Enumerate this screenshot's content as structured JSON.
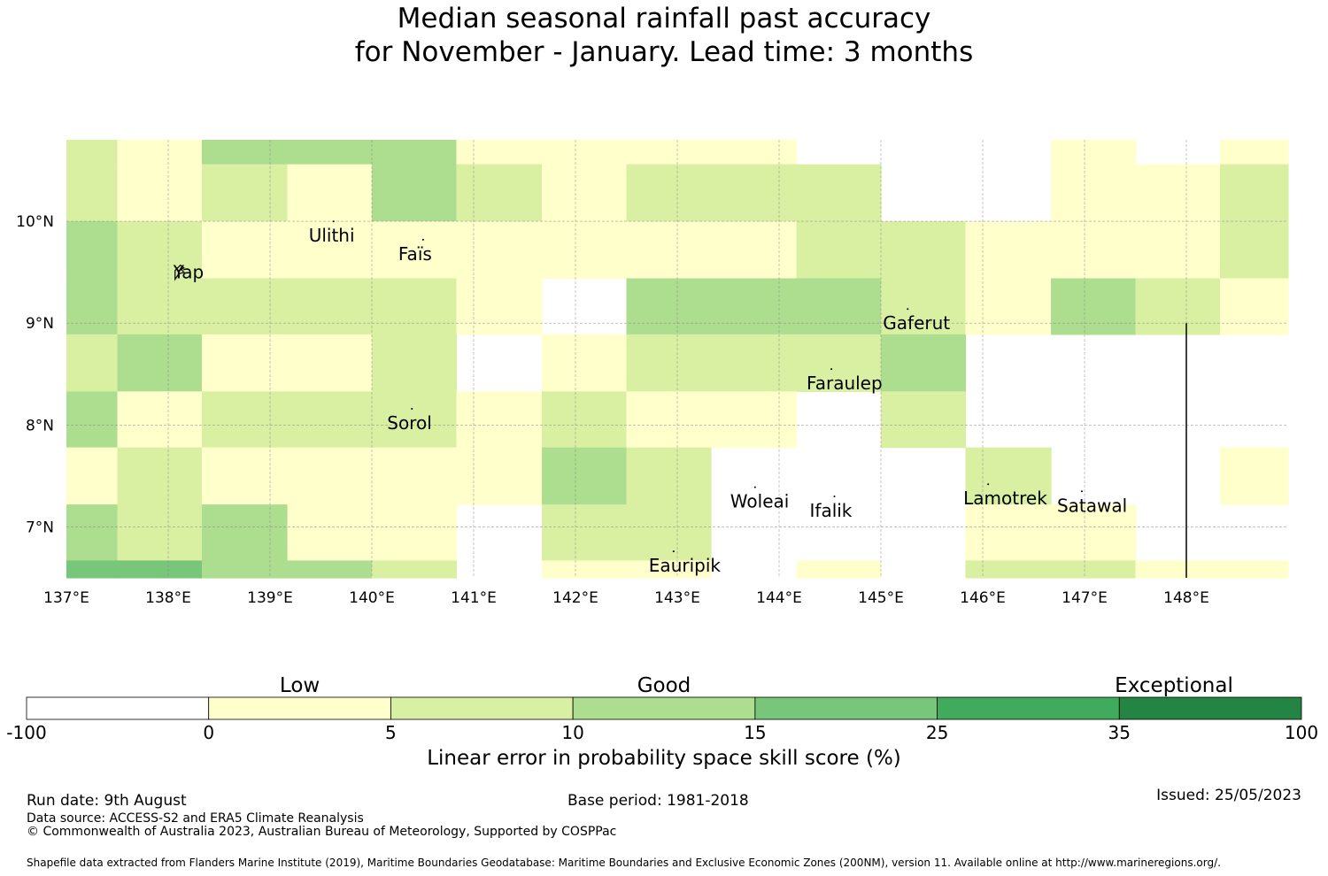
{
  "title": {
    "line1": "Median seasonal rainfall past accuracy",
    "line2": "for November - January. Lead time: 3 months"
  },
  "map": {
    "lon_range": [
      137.0,
      149.0
    ],
    "lat_range": [
      6.5,
      10.8
    ],
    "x_ticks": [
      {
        "lon": 137,
        "label": "137°E"
      },
      {
        "lon": 138,
        "label": "138°E"
      },
      {
        "lon": 139,
        "label": "139°E"
      },
      {
        "lon": 140,
        "label": "140°E"
      },
      {
        "lon": 141,
        "label": "141°E"
      },
      {
        "lon": 142,
        "label": "142°E"
      },
      {
        "lon": 143,
        "label": "143°E"
      },
      {
        "lon": 144,
        "label": "144°E"
      },
      {
        "lon": 145,
        "label": "145°E"
      },
      {
        "lon": 146,
        "label": "146°E"
      },
      {
        "lon": 147,
        "label": "147°E"
      },
      {
        "lon": 148,
        "label": "148°E"
      }
    ],
    "y_ticks": [
      {
        "lat": 10,
        "label": "10°N"
      },
      {
        "lat": 9,
        "label": "9°N"
      },
      {
        "lat": 8,
        "label": "8°N"
      },
      {
        "lat": 7,
        "label": "7°N"
      }
    ],
    "grid_lon": [
      138,
      139,
      140,
      141,
      142,
      143,
      144,
      145,
      146,
      147,
      148
    ],
    "grid_lat": [
      10,
      9,
      8,
      7
    ],
    "cell_columns": [
      [
        137.0,
        137.5
      ],
      [
        137.5,
        138.33
      ],
      [
        138.33,
        139.17
      ],
      [
        139.17,
        140.0
      ],
      [
        140.0,
        140.83
      ],
      [
        140.83,
        141.67
      ],
      [
        141.67,
        142.5
      ],
      [
        142.5,
        143.33
      ],
      [
        143.33,
        144.17
      ],
      [
        144.17,
        145.0
      ],
      [
        145.0,
        145.83
      ],
      [
        145.83,
        146.67
      ],
      [
        146.67,
        147.5
      ],
      [
        147.5,
        148.33
      ],
      [
        148.33,
        149.0
      ]
    ],
    "cell_rows": [
      [
        10.56,
        10.8
      ],
      [
        10.0,
        10.56
      ],
      [
        9.44,
        10.0
      ],
      [
        8.89,
        9.44
      ],
      [
        8.33,
        8.89
      ],
      [
        7.78,
        8.33
      ],
      [
        7.22,
        7.78
      ],
      [
        6.67,
        7.22
      ],
      [
        6.5,
        6.67
      ]
    ],
    "skill_grid": [
      [
        2,
        1,
        3,
        3,
        3,
        1,
        1,
        1,
        1,
        0,
        0,
        0,
        1,
        0,
        1
      ],
      [
        2,
        1,
        2,
        1,
        3,
        2,
        1,
        2,
        2,
        2,
        0,
        0,
        1,
        1,
        2
      ],
      [
        3,
        2,
        1,
        1,
        1,
        1,
        1,
        1,
        1,
        2,
        2,
        1,
        1,
        1,
        2
      ],
      [
        3,
        2,
        2,
        2,
        2,
        1,
        0,
        3,
        3,
        3,
        2,
        1,
        3,
        2,
        1
      ],
      [
        2,
        3,
        1,
        1,
        2,
        0,
        1,
        2,
        2,
        2,
        3,
        0,
        0,
        0,
        0
      ],
      [
        3,
        1,
        2,
        2,
        2,
        1,
        2,
        1,
        1,
        0,
        2,
        0,
        0,
        0,
        0
      ],
      [
        1,
        2,
        1,
        1,
        1,
        1,
        3,
        2,
        0,
        0,
        0,
        2,
        0,
        0,
        1
      ],
      [
        3,
        2,
        3,
        1,
        1,
        0,
        2,
        2,
        0,
        0,
        0,
        1,
        1,
        0,
        0
      ],
      [
        4,
        4,
        3,
        3,
        2,
        0,
        1,
        1,
        0,
        1,
        0,
        2,
        2,
        1,
        1
      ]
    ],
    "boundary_line": {
      "lon": 148.0,
      "lat_from": 9.0,
      "lat_to": 6.5
    },
    "places": [
      {
        "name": "Ulithi",
        "lon": 139.38,
        "lat": 9.86
      },
      {
        "name": "Faïs",
        "lon": 140.26,
        "lat": 9.68
      },
      {
        "name": "Yap",
        "lon": 138.05,
        "lat": 9.5
      },
      {
        "name": "Gaferut",
        "lon": 145.02,
        "lat": 9.0
      },
      {
        "name": "Faraulep",
        "lon": 144.27,
        "lat": 8.41
      },
      {
        "name": "Sorol",
        "lon": 140.15,
        "lat": 8.02
      },
      {
        "name": "Woleai",
        "lon": 143.52,
        "lat": 7.25
      },
      {
        "name": "Ifalik",
        "lon": 144.3,
        "lat": 7.16
      },
      {
        "name": "Lamotrek",
        "lon": 145.81,
        "lat": 7.28
      },
      {
        "name": "Satawal",
        "lon": 146.73,
        "lat": 7.21
      },
      {
        "name": "Eauripik",
        "lon": 142.72,
        "lat": 6.62
      }
    ]
  },
  "colorbar": {
    "category_labels": [
      {
        "label": "Low",
        "at": 1.5
      },
      {
        "label": "Good",
        "at": 3.5
      },
      {
        "label": "Exceptional",
        "at": 6.3
      }
    ],
    "bins": [
      {
        "from": "-100",
        "to": "0",
        "color": "#ffffff"
      },
      {
        "from": "0",
        "to": "5",
        "color": "#ffffcc"
      },
      {
        "from": "5",
        "to": "10",
        "color": "#d9f0a3"
      },
      {
        "from": "10",
        "to": "15",
        "color": "#addd8e"
      },
      {
        "from": "15",
        "to": "25",
        "color": "#78c679"
      },
      {
        "from": "25",
        "to": "35",
        "color": "#41ab5d"
      },
      {
        "from": "35",
        "to": "100",
        "color": "#238443"
      }
    ],
    "tick_labels": [
      "-100",
      "0",
      "5",
      "10",
      "15",
      "25",
      "35",
      "100"
    ],
    "title": "Linear error in probability space skill score (%)"
  },
  "footer": {
    "run_date": "Run date: 9th August",
    "base_period": "Base period: 1981-2018",
    "issued": "Issued: 25/05/2023",
    "data_source": "Data source: ACCESS-S2 and ERA5 Climate Reanalysis",
    "copyright": "© Commonwealth of Australia 2023, Australian Bureau of Meteorology, Supported by COSPPac",
    "shapefile": "Shapefile data extracted from Flanders Marine Institute (2019), Maritime Boundaries Geodatabase: Maritime Boundaries and Exclusive Economic Zones (200NM), version 11. Available online at http://www.marineregions.org/."
  }
}
